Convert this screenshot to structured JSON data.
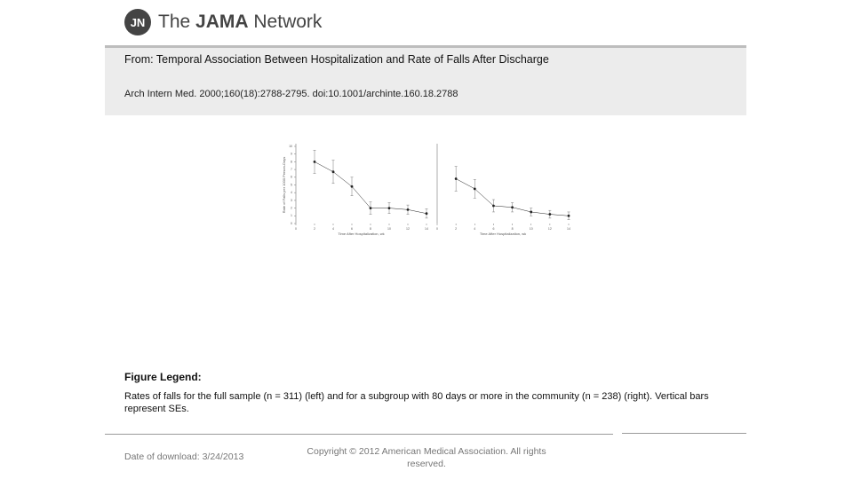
{
  "header": {
    "logo_mark": "JN",
    "brand_prefix": "The",
    "brand_bold": "JAMA",
    "brand_suffix": "Network"
  },
  "source": {
    "from_label": "From:",
    "title": "Temporal Association Between Hospitalization and Rate of Falls After Discharge",
    "citation": "Arch Intern Med. 2000;160(18):2788-2795. doi:10.1001/archinte.160.18.2788"
  },
  "chart_data": [
    {
      "type": "line",
      "x_label": "Time After Hospitalization, wk",
      "y_label": "Rate of Falls per 1000 Person-Days",
      "x": [
        2,
        4,
        6,
        8,
        10,
        12,
        14
      ],
      "values": [
        8,
        6.7,
        4.8,
        2,
        2,
        1.8,
        1.3
      ],
      "errors": [
        1.5,
        1.5,
        1.2,
        0.8,
        0.7,
        0.6,
        0.6
      ],
      "xlim": [
        0,
        14
      ],
      "ylim": [
        0,
        10
      ],
      "xticks": [
        0,
        2,
        4,
        6,
        8,
        10,
        12,
        14
      ],
      "yticks": [
        0,
        1,
        2,
        3,
        4,
        5,
        6,
        7,
        8,
        9,
        10
      ],
      "color": "#222"
    },
    {
      "type": "line",
      "x_label": "Time After Hospitalization, wk",
      "x": [
        2,
        4,
        6,
        8,
        10,
        12,
        14
      ],
      "values": [
        5.8,
        4.5,
        2.3,
        2.1,
        1.5,
        1.2,
        1
      ],
      "errors": [
        1.6,
        1.2,
        0.8,
        0.6,
        0.5,
        0.5,
        0.5
      ],
      "xlim": [
        0,
        14
      ],
      "ylim": [
        0,
        10
      ],
      "xticks": [
        0,
        2,
        4,
        6,
        8,
        10,
        12,
        14
      ],
      "color": "#222"
    }
  ],
  "legend": {
    "heading": "Figure Legend:",
    "text": "Rates of falls for the full sample (n = 311) (left) and for a subgroup with 80 days or more in the community (n = 238) (right). Vertical bars represent SEs."
  },
  "footer": {
    "download_label": "Date of download:",
    "download_date": "3/24/2013",
    "copyright": "Copyright © 2012 American Medical Association. All rights reserved."
  }
}
